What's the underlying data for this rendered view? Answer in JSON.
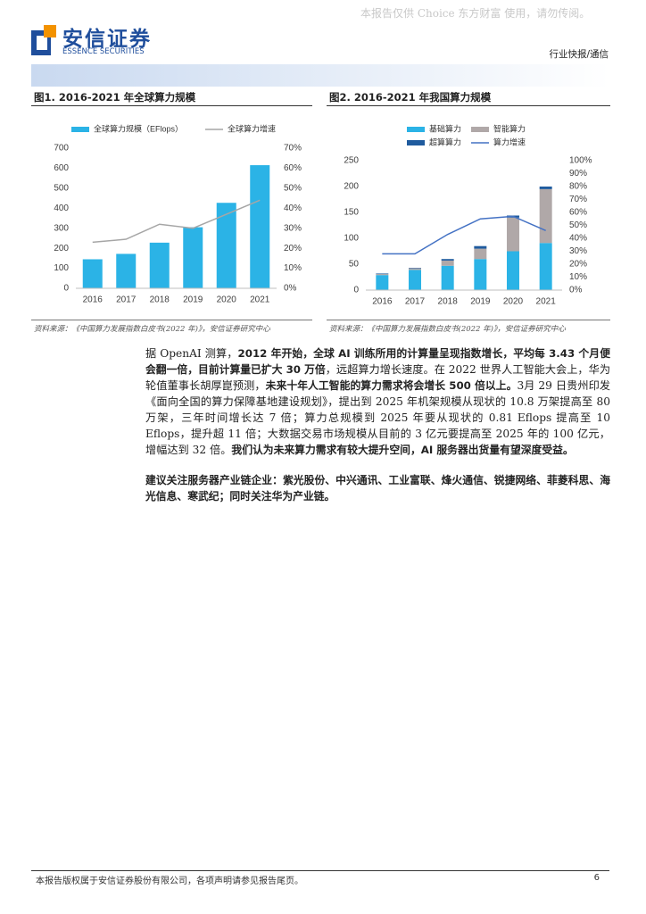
{
  "header": {
    "logo": "安信证券",
    "logo_en": "ESSENCE SECURITIES",
    "watermark": "本报告仅供 Choice 东方财富 使用，请勿传阅。",
    "section": "行业快报/通信"
  },
  "figures": [
    {
      "title": "图1. 2016-2021 年全球算力规模",
      "source": "资料来源：《中国算力发展指数白皮书(2022 年)》，安信证券研究中心"
    },
    {
      "title": "图2. 2016-2021 年我国算力规模",
      "source": "资料来源：《中国算力发展指数白皮书(2022 年)》，安信证券研究中心"
    }
  ],
  "chart_data": [
    {
      "type": "bar",
      "stacked": false,
      "categories": [
        "2016",
        "2017",
        "2018",
        "2019",
        "2020",
        "2021"
      ],
      "series": [
        {
          "name": "全球算力规模（EFlops）",
          "color": "#2bb3e6",
          "values": [
            145,
            172,
            228,
            305,
            427,
            615
          ]
        },
        {
          "name": "全球算力增速",
          "type": "line",
          "axis": "y2",
          "color": "#a6a6a6",
          "values": [
            23,
            24.5,
            32,
            30,
            37,
            44
          ]
        }
      ],
      "ylim": [
        0,
        700
      ],
      "yticks": [
        0,
        100,
        200,
        300,
        400,
        500,
        600,
        700
      ],
      "y2lim": [
        0,
        70
      ],
      "y2ticks": [
        {
          "value": 0,
          "label": "0%"
        },
        {
          "value": 10,
          "label": "10%"
        },
        {
          "value": 20,
          "label": "20%"
        },
        {
          "value": 30,
          "label": "30%"
        },
        {
          "value": 40,
          "label": "40%"
        },
        {
          "value": 50,
          "label": "50%"
        },
        {
          "value": 60,
          "label": "60%"
        },
        {
          "value": 70,
          "label": "70%"
        }
      ]
    },
    {
      "type": "bar",
      "stacked": true,
      "categories": [
        "2016",
        "2017",
        "2018",
        "2019",
        "2020",
        "2021"
      ],
      "series": [
        {
          "name": "基础算力",
          "color": "#2bb3e6",
          "values": [
            29,
            39,
            47,
            60,
            75,
            91
          ]
        },
        {
          "name": "智能算力",
          "color": "#b0a8a8",
          "values": [
            2,
            3,
            10,
            20,
            65,
            104
          ]
        },
        {
          "name": "超算算力",
          "color": "#1f5b9e",
          "values": [
            1,
            1,
            3,
            5,
            4,
            5
          ]
        },
        {
          "name": "算力增速",
          "type": "line",
          "axis": "y2",
          "color": "#4472c4",
          "values": [
            28,
            28,
            43,
            55,
            57,
            46
          ]
        }
      ],
      "ylim": [
        0,
        250
      ],
      "yticks": [
        0,
        50,
        100,
        150,
        200,
        250
      ],
      "y2lim": [
        0,
        100
      ],
      "y2ticks": [
        {
          "value": 0,
          "label": "0%"
        },
        {
          "value": 10,
          "label": "10%"
        },
        {
          "value": 20,
          "label": "20%"
        },
        {
          "value": 30,
          "label": "30%"
        },
        {
          "value": 40,
          "label": "40%"
        },
        {
          "value": 50,
          "label": "50%"
        },
        {
          "value": 60,
          "label": "60%"
        },
        {
          "value": 70,
          "label": "70%"
        },
        {
          "value": 80,
          "label": "80%"
        },
        {
          "value": 90,
          "label": "90%"
        },
        {
          "value": 100,
          "label": "100%"
        }
      ]
    }
  ],
  "body": {
    "paragraphs": [
      [
        {
          "text": "据 OpenAI 测算，",
          "bold": false
        },
        {
          "text": "2012 年开始，全球 AI 训练所用的计算量呈现指数增长，平均每 3.43 个月便会翻一倍，目前计算量已扩大 30 万倍",
          "bold": true
        },
        {
          "text": "，远超算力增长速度。在 2022 世界人工智能大会上，华为轮值董事长胡厚崑预测，",
          "bold": false
        },
        {
          "text": "未来十年人工智能的算力需求将会增长 500 倍以上。",
          "bold": true
        },
        {
          "text": "3月 29 日贵州印发《面向全国的算力保障基地建设规划》，提出到 2025 年机架规模从现状的 10.8 万架提高至 80 万架，三年时间增长达 7 倍；算力总规模到 2025 年要从现状的 0.81 Eflops 提高至 10 Eflops，提升超 11 倍；大数据交易市场规模从目前的 3 亿元要提高至 2025 年的 100 亿元，增幅达到 32 倍。",
          "bold": false
        },
        {
          "text": "我们认为未来算力需求有较大提升空间，AI 服务器出货量有望深度受益。",
          "bold": true
        }
      ],
      [
        {
          "text": "建议关注服务器产业链企业：紫光股份、中兴通讯、工业富联、烽火通信、锐捷网络、菲菱科思、海光信息、寒武纪；同时关注华为产业链。",
          "bold": true
        }
      ]
    ]
  },
  "footer": {
    "text": "本报告版权属于安信证券股份有限公司，各项声明请参见报告尾页。",
    "page": "6"
  }
}
